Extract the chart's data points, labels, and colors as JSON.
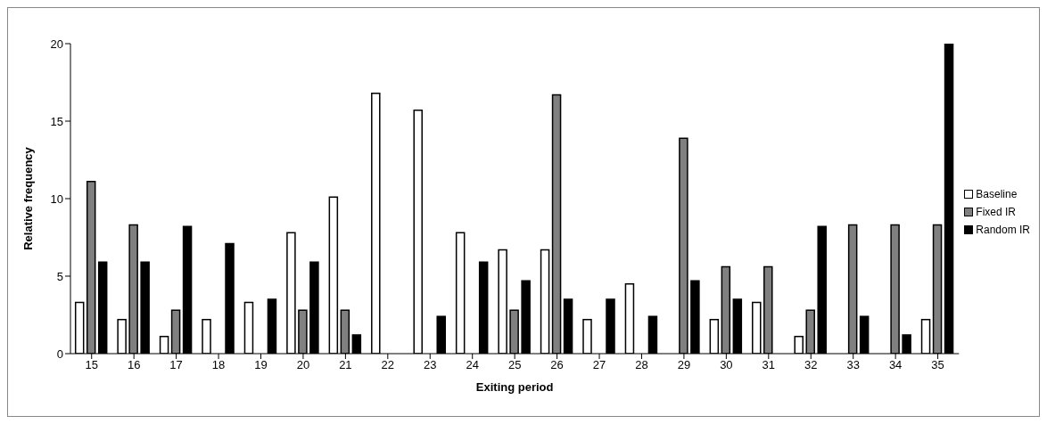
{
  "chart_data": {
    "type": "bar",
    "xlabel": "Exiting period",
    "ylabel": "Relative frequency",
    "categories": [
      "15",
      "16",
      "17",
      "18",
      "19",
      "20",
      "21",
      "22",
      "23",
      "24",
      "25",
      "26",
      "27",
      "28",
      "29",
      "30",
      "31",
      "32",
      "33",
      "34",
      "35"
    ],
    "series": [
      {
        "name": "Baseline",
        "color": "#ffffff",
        "values": [
          3.3,
          2.2,
          1.1,
          2.2,
          3.3,
          7.8,
          10.1,
          16.8,
          15.7,
          7.8,
          6.7,
          6.7,
          2.2,
          4.5,
          0,
          2.2,
          3.3,
          1.1,
          0,
          0,
          2.2
        ]
      },
      {
        "name": "Fixed IR",
        "color": "#808080",
        "values": [
          11.1,
          8.3,
          2.8,
          0,
          0,
          2.8,
          2.8,
          0,
          0,
          0,
          2.8,
          16.7,
          0,
          0,
          13.9,
          5.6,
          5.6,
          2.8,
          8.3,
          8.3,
          8.3
        ]
      },
      {
        "name": "Random IR",
        "color": "#000000",
        "values": [
          5.9,
          5.9,
          8.2,
          7.1,
          3.5,
          5.9,
          1.2,
          0,
          2.4,
          5.9,
          4.7,
          3.5,
          3.5,
          2.4,
          4.7,
          3.5,
          0,
          8.2,
          2.4,
          1.2,
          20
        ]
      }
    ],
    "ylim": [
      0,
      20
    ],
    "yticks": [
      0,
      5,
      10,
      15,
      20
    ],
    "grid": false,
    "legend": "right"
  }
}
